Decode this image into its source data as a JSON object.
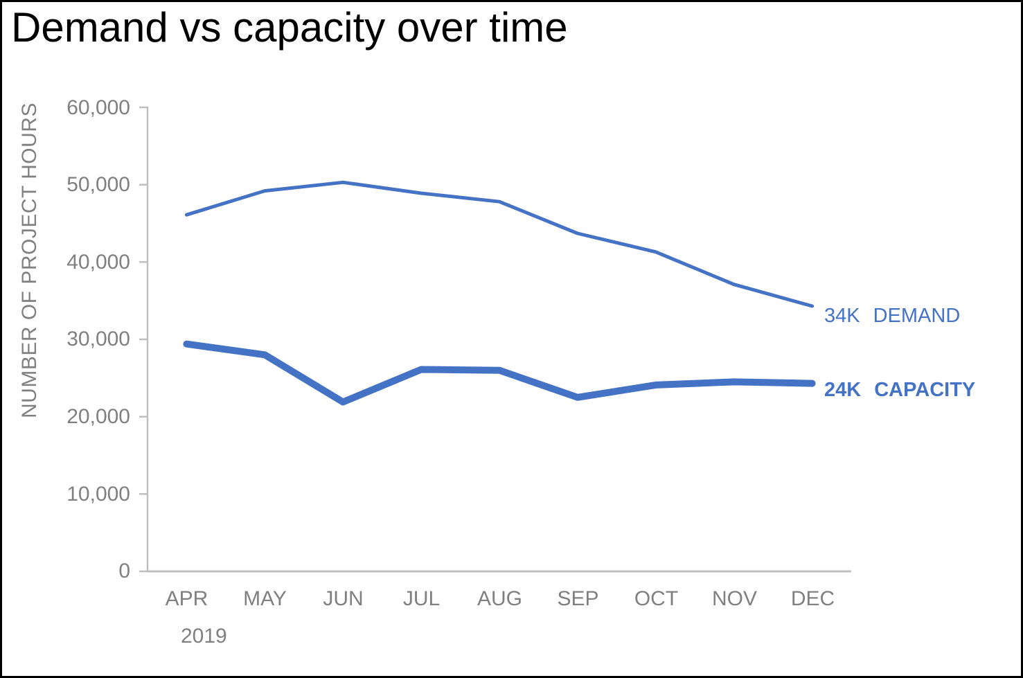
{
  "chart_data": {
    "type": "line",
    "title": "Demand vs capacity over time",
    "ylabel": "NUMBER OF PROJECT HOURS",
    "xlabel": "",
    "year_label": "2019",
    "categories": [
      "APR",
      "MAY",
      "JUN",
      "JUL",
      "AUG",
      "SEP",
      "OCT",
      "NOV",
      "DEC"
    ],
    "ylim": [
      0,
      60000
    ],
    "grid": false,
    "legend_position": "end-of-line-right",
    "yticks": [
      {
        "value": 0,
        "label": "0"
      },
      {
        "value": 10000,
        "label": "10,000"
      },
      {
        "value": 20000,
        "label": "20,000"
      },
      {
        "value": 30000,
        "label": "30,000"
      },
      {
        "value": 40000,
        "label": "40,000"
      },
      {
        "value": 50000,
        "label": "50,000"
      },
      {
        "value": 60000,
        "label": "60,000"
      }
    ],
    "series": [
      {
        "name": "DEMAND",
        "end_label": "34K",
        "color": "#4472C4",
        "values": [
          46100,
          49200,
          50300,
          48900,
          47800,
          43700,
          41300,
          37100,
          34300
        ]
      },
      {
        "name": "CAPACITY",
        "end_label": "24K",
        "color": "#4472C4",
        "values": [
          29400,
          28000,
          21900,
          26100,
          26000,
          22500,
          24100,
          24500,
          24300
        ]
      }
    ]
  },
  "colors": {
    "accent_blue": "#4472C4",
    "axis_text_gray": "#808080",
    "axis_line_gray": "#BFBFBF",
    "title_black": "#000000",
    "background": "#FFFFFF",
    "border": "#000000"
  }
}
